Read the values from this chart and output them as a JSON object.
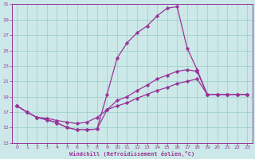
{
  "title": "Windchill (Refroidissement éolien,°C)",
  "bg_color": "#cce8e8",
  "grid_color": "#99cccc",
  "line_color": "#993399",
  "xlim": [
    0,
    23
  ],
  "ylim": [
    13,
    31
  ],
  "xticks": [
    0,
    1,
    2,
    3,
    4,
    5,
    6,
    7,
    8,
    9,
    10,
    11,
    12,
    13,
    14,
    15,
    16,
    17,
    18,
    19,
    20,
    21,
    22,
    23
  ],
  "yticks": [
    13,
    15,
    17,
    19,
    21,
    23,
    25,
    27,
    29,
    31
  ],
  "curve1_x": [
    0,
    1,
    2,
    3,
    4,
    5,
    6,
    7,
    8,
    9,
    10,
    11,
    12,
    13,
    14,
    15,
    16,
    17,
    18,
    19,
    20,
    21,
    22,
    23
  ],
  "curve1_y": [
    17.8,
    17.0,
    16.3,
    16.0,
    15.6,
    15.0,
    14.7,
    14.7,
    14.8,
    19.3,
    24.0,
    26.0,
    27.3,
    28.2,
    29.5,
    30.5,
    30.7,
    25.3,
    22.5,
    19.3,
    19.3,
    19.3,
    19.3,
    19.3
  ],
  "curve2_x": [
    0,
    1,
    2,
    3,
    4,
    5,
    6,
    7,
    8,
    9,
    10,
    11,
    12,
    13,
    14,
    15,
    16,
    17,
    18,
    19,
    20,
    21,
    22,
    23
  ],
  "curve2_y": [
    17.8,
    17.0,
    16.3,
    16.0,
    15.6,
    15.0,
    14.7,
    14.7,
    14.8,
    17.3,
    18.5,
    19.0,
    19.8,
    20.5,
    21.3,
    21.8,
    22.3,
    22.5,
    22.3,
    19.3,
    19.3,
    19.3,
    19.3,
    19.3
  ],
  "curve3_x": [
    0,
    1,
    2,
    3,
    4,
    5,
    6,
    7,
    8,
    9,
    10,
    11,
    12,
    13,
    14,
    15,
    16,
    17,
    18,
    19,
    20,
    21,
    22,
    23
  ],
  "curve3_y": [
    17.8,
    17.0,
    16.3,
    16.2,
    15.9,
    15.7,
    15.5,
    15.7,
    16.3,
    17.3,
    17.8,
    18.2,
    18.8,
    19.3,
    19.8,
    20.2,
    20.7,
    21.0,
    21.3,
    19.3,
    19.3,
    19.3,
    19.3,
    19.3
  ],
  "markersize": 2.5,
  "linewidth": 0.9
}
